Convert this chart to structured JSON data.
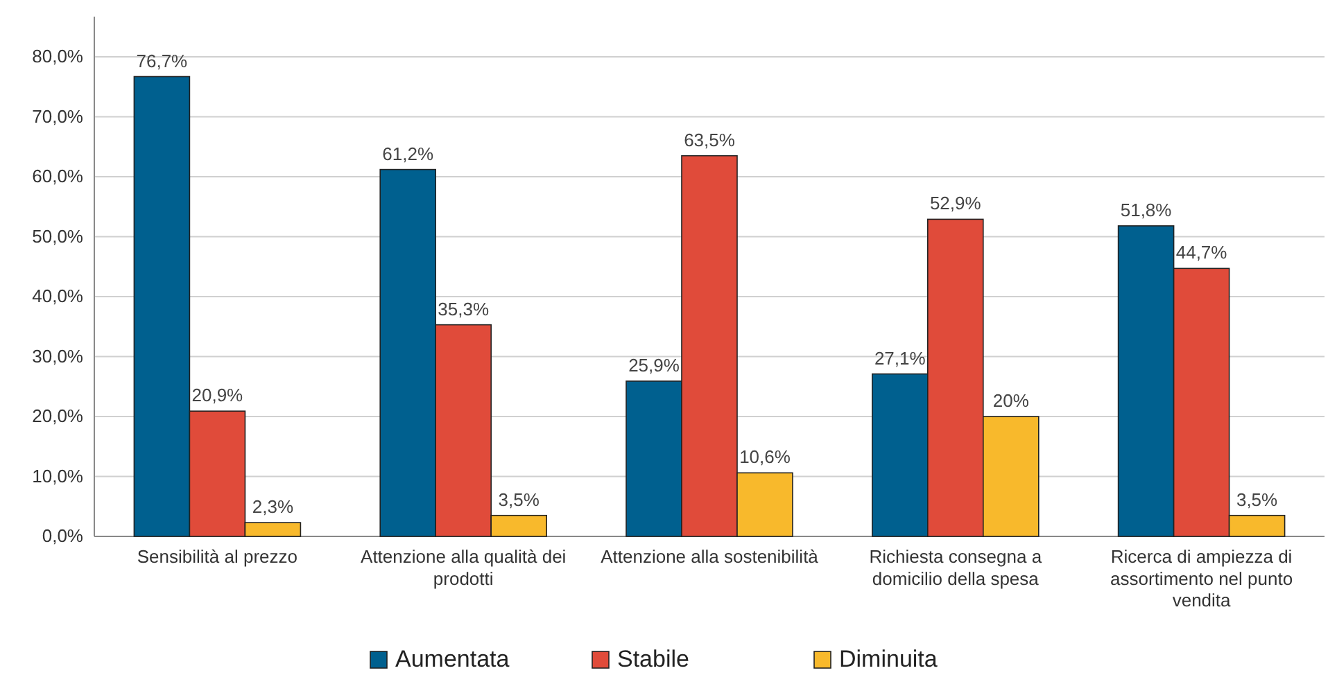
{
  "chart_data": {
    "type": "bar",
    "categories": [
      "Sensibilità al prezzo",
      "Attenzione alla qualità dei prodotti",
      "Attenzione alla sostenibilità",
      "Richiesta consegna a domicilio della spesa",
      "Ricerca di ampiezza di assortimento nel punto vendita"
    ],
    "series": [
      {
        "name": "Aumentata",
        "color": "#00608f",
        "values": [
          76.7,
          61.2,
          25.9,
          27.1,
          51.8
        ],
        "value_labels": [
          "76,7%",
          "61,2%",
          "25,9%",
          "27,1%",
          "51,8%"
        ]
      },
      {
        "name": "Stabile",
        "color": "#e04b3a",
        "values": [
          20.9,
          35.3,
          63.5,
          52.9,
          44.7
        ],
        "value_labels": [
          "20,9%",
          "35,3%",
          "63,5%",
          "52,9%",
          "44,7%"
        ]
      },
      {
        "name": "Diminuita",
        "color": "#f8b92c",
        "values": [
          2.3,
          3.5,
          10.6,
          20,
          3.5
        ],
        "value_labels": [
          "2,3%",
          "3,5%",
          "10,6%",
          "20%",
          "3,5%"
        ]
      }
    ],
    "ylim": [
      0,
      86.7
    ],
    "yticks": [
      {
        "value": 0,
        "label": "0,0%"
      },
      {
        "value": 10,
        "label": "10,0%"
      },
      {
        "value": 20,
        "label": "20,0%"
      },
      {
        "value": 30,
        "label": "30,0%"
      },
      {
        "value": 40,
        "label": "40,0%"
      },
      {
        "value": 50,
        "label": "50,0%"
      },
      {
        "value": 60,
        "label": "60,0%"
      },
      {
        "value": 70,
        "label": "70,0%"
      },
      {
        "value": 80,
        "label": "80,0%"
      }
    ],
    "grid": "y",
    "legend": "bottom"
  }
}
